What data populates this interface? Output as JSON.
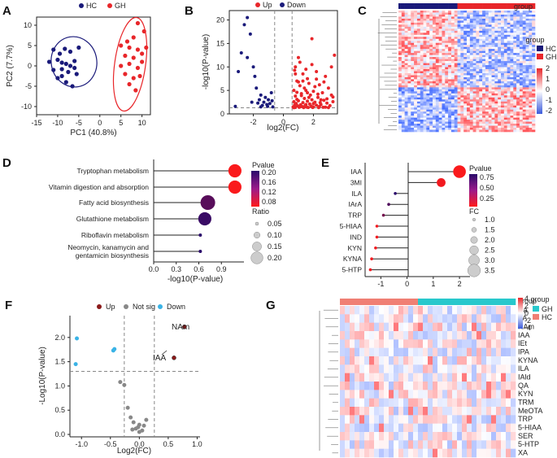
{
  "panels": {
    "A": "A",
    "B": "B",
    "C": "C",
    "D": "D",
    "E": "E",
    "F": "F",
    "G": "G"
  },
  "colors": {
    "hc": "#1a1a7a",
    "gh": "#e8262a",
    "up": "#e8262a",
    "down": "#1a1a7a",
    "f_up": "#8b1a1a",
    "f_notsig": "#888888",
    "f_down": "#3ab3e6"
  },
  "chart_data": [
    {
      "id": "A",
      "type": "scatter",
      "xlabel": "PC1 (40.8%)",
      "ylabel": "PC2 (7.7%)",
      "xlim": [
        -15,
        12
      ],
      "ylim": [
        -12,
        12
      ],
      "xticks": [
        -15,
        -10,
        -5,
        0,
        5,
        10
      ],
      "yticks": [
        -10,
        -5,
        0,
        5,
        10
      ],
      "legend": [
        "HC",
        "GH"
      ],
      "series": [
        {
          "name": "HC",
          "points": [
            [
              -11,
              4
            ],
            [
              -9.5,
              3
            ],
            [
              -8.3,
              4.2
            ],
            [
              -7,
              3.5
            ],
            [
              -5,
              4.5
            ],
            [
              -12,
              1
            ],
            [
              -10,
              1.5
            ],
            [
              -9,
              0.8
            ],
            [
              -8,
              0.5
            ],
            [
              -6,
              1.2
            ],
            [
              -11,
              -1
            ],
            [
              -9,
              -0.8
            ],
            [
              -7.5,
              -1.5
            ],
            [
              -6,
              -0.5
            ],
            [
              -5.5,
              -2
            ],
            [
              -10,
              -3
            ],
            [
              -8,
              -4
            ],
            [
              -6.5,
              -5
            ],
            [
              -9,
              -2.5
            ],
            [
              -7,
              0
            ]
          ]
        },
        {
          "name": "GH",
          "points": [
            [
              9,
              10.5
            ],
            [
              10.5,
              8.5
            ],
            [
              8,
              7
            ],
            [
              6.5,
              6
            ],
            [
              5,
              5
            ],
            [
              7,
              4.5
            ],
            [
              9,
              4
            ],
            [
              11,
              4.5
            ],
            [
              6,
              2.5
            ],
            [
              8,
              2
            ],
            [
              10,
              1
            ],
            [
              5,
              0
            ],
            [
              7,
              0.5
            ],
            [
              9,
              -0.5
            ],
            [
              6,
              -2
            ],
            [
              8,
              -3
            ],
            [
              7,
              -4.5
            ],
            [
              9.5,
              -2.5
            ],
            [
              8.5,
              -6
            ],
            [
              10,
              3
            ]
          ]
        }
      ]
    },
    {
      "id": "B",
      "type": "scatter",
      "xlabel": "log2(FC)",
      "ylabel": "-log10(P-value)",
      "xlim": [
        -3.6,
        3.6
      ],
      "ylim": [
        0,
        22
      ],
      "xticks": [
        -2,
        0,
        2
      ],
      "yticks": [
        0,
        5,
        10,
        15,
        20
      ],
      "legend": [
        "Up",
        "Down"
      ],
      "thresholds": {
        "x": [
          -0.58,
          0.58
        ],
        "y": 1.3
      },
      "series": [
        {
          "name": "Down",
          "points": [
            [
              -2.4,
              20.5
            ],
            [
              -2.6,
              19
            ],
            [
              -2.2,
              17
            ],
            [
              -2.8,
              13
            ],
            [
              -2.4,
              12
            ],
            [
              -3.0,
              9
            ],
            [
              -2.0,
              10
            ],
            [
              -1.9,
              8
            ],
            [
              -1.8,
              5.5
            ],
            [
              -1.5,
              4
            ],
            [
              -1.6,
              3
            ],
            [
              -1.3,
              2.5
            ],
            [
              -1.1,
              2
            ],
            [
              -1.0,
              3
            ],
            [
              -0.8,
              4.5
            ],
            [
              -0.9,
              2.2
            ],
            [
              -1.4,
              1.8
            ],
            [
              -0.7,
              1.5
            ],
            [
              -3.2,
              1.6
            ],
            [
              -1.7,
              2.3
            ],
            [
              -1.2,
              3.5
            ],
            [
              -1.05,
              1.6
            ],
            [
              -0.75,
              2.8
            ],
            [
              -2.1,
              2.5
            ],
            [
              -1.5,
              1.5
            ]
          ]
        },
        {
          "name": "Up",
          "points": [
            [
              3.4,
              12.5
            ],
            [
              3.2,
              10
            ],
            [
              1.9,
              16
            ],
            [
              1.0,
              12
            ],
            [
              0.8,
              10
            ],
            [
              2.2,
              9
            ],
            [
              1.3,
              8.5
            ],
            [
              2.8,
              8
            ],
            [
              1.6,
              7.5
            ],
            [
              0.9,
              7
            ],
            [
              1.7,
              6.5
            ],
            [
              2.4,
              6.2
            ],
            [
              1.1,
              6
            ],
            [
              3.0,
              5.5
            ],
            [
              0.7,
              5
            ],
            [
              1.5,
              5
            ],
            [
              2.0,
              4.8
            ],
            [
              2.6,
              4.5
            ],
            [
              1.2,
              4.3
            ],
            [
              1.8,
              4
            ],
            [
              0.8,
              3.8
            ],
            [
              3.3,
              3.6
            ],
            [
              2.3,
              3.5
            ],
            [
              1.4,
              3.3
            ],
            [
              0.9,
              3.1
            ],
            [
              1.9,
              3
            ],
            [
              2.7,
              2.9
            ],
            [
              1.0,
              2.8
            ],
            [
              1.6,
              2.7
            ],
            [
              0.7,
              2.6
            ],
            [
              2.1,
              2.5
            ],
            [
              1.3,
              2.4
            ],
            [
              2.9,
              2.3
            ],
            [
              0.85,
              2.2
            ],
            [
              1.75,
              2.1
            ],
            [
              2.5,
              2.0
            ],
            [
              1.15,
              1.95
            ],
            [
              0.75,
              1.9
            ],
            [
              2.2,
              1.85
            ],
            [
              1.45,
              1.8
            ],
            [
              3.1,
              1.75
            ],
            [
              0.95,
              1.7
            ],
            [
              1.85,
              1.65
            ],
            [
              2.4,
              1.6
            ],
            [
              1.25,
              1.55
            ],
            [
              0.65,
              1.5
            ],
            [
              2.0,
              1.48
            ],
            [
              1.55,
              1.45
            ],
            [
              2.8,
              1.42
            ],
            [
              1.05,
              1.4
            ],
            [
              0.8,
              1.38
            ],
            [
              1.95,
              1.36
            ],
            [
              2.35,
              1.35
            ],
            [
              1.35,
              1.34
            ],
            [
              0.7,
              1.33
            ],
            [
              3.0,
              1.34
            ],
            [
              1.65,
              1.36
            ],
            [
              2.65,
              1.4
            ],
            [
              1.1,
              1.5
            ],
            [
              1.5,
              2.0
            ],
            [
              2.0,
              2.2
            ],
            [
              2.5,
              3.0
            ],
            [
              1.7,
              3.5
            ],
            [
              1.2,
              3.9
            ],
            [
              2.3,
              4.2
            ],
            [
              3.2,
              4.0
            ],
            [
              0.9,
              4.6
            ],
            [
              1.4,
              5.5
            ],
            [
              2.1,
              5.8
            ],
            [
              1.0,
              6.8
            ],
            [
              2.2,
              7.4
            ],
            [
              1.5,
              9.5
            ],
            [
              0.8,
              8.5
            ],
            [
              2.7,
              6.8
            ],
            [
              1.9,
              10.5
            ],
            [
              1.1,
              11
            ],
            [
              0.75,
              9.3
            ],
            [
              3.3,
              2.6
            ],
            [
              2.9,
              3.2
            ],
            [
              1.6,
              4.5
            ],
            [
              1.3,
              7
            ],
            [
              2.45,
              2.4
            ]
          ]
        }
      ]
    },
    {
      "id": "C",
      "type": "heatmap",
      "legend_title": "group",
      "legend": [
        "HC",
        "GH"
      ],
      "colorbar_ticks": [
        "2",
        "1",
        "0",
        "-1",
        "-2"
      ],
      "cols": 44,
      "rows": 60
    },
    {
      "id": "D",
      "type": "lollipop",
      "xlabel": "-log10(P-value)",
      "xticks": [
        "0.0",
        "0.3",
        "0.6",
        "0.9"
      ],
      "xlim": [
        0,
        1.2
      ],
      "categories": [
        "Tryptophan metabolism",
        "Vitamin digestion and absorption",
        "Fatty acid biosynthesis",
        "Glutathione metabolism",
        "Riboflavin metabolism",
        "Neomycin, kanamycin and gentamicin biosynthesis"
      ],
      "values": [
        1.08,
        1.08,
        0.72,
        0.68,
        0.62,
        0.62
      ],
      "pvalue": [
        0.083,
        0.083,
        0.19,
        0.21,
        0.24,
        0.24
      ],
      "ratio": [
        0.18,
        0.18,
        0.2,
        0.18,
        0.05,
        0.05
      ],
      "size_legend": {
        "title": "Ratio",
        "labels": [
          "0.05",
          "0.10",
          "0.15",
          "0.20"
        ]
      },
      "color_legend": {
        "title": "Pvalue",
        "labels": [
          "0.20",
          "0.16",
          "0.12",
          "0.08"
        ]
      }
    },
    {
      "id": "E",
      "type": "lollipop",
      "xlim": [
        -1.6,
        2.4
      ],
      "xticks": [
        "-1",
        "0",
        "1",
        "2"
      ],
      "categories": [
        "IAA",
        "3MI",
        "ILA",
        "IArA",
        "TRP",
        "5-HIAA",
        "IND",
        "KYN",
        "KYNA",
        "5-HTP"
      ],
      "values": [
        2.0,
        1.3,
        -0.45,
        -0.7,
        -0.9,
        -1.15,
        -1.15,
        -1.2,
        -1.35,
        -1.4
      ],
      "pvalue": [
        0.02,
        0.05,
        0.85,
        0.7,
        0.55,
        0.05,
        0.05,
        0.05,
        0.05,
        0.05
      ],
      "fc": [
        3.5,
        2.5,
        1.0,
        1.0,
        1.0,
        1.0,
        1.0,
        1.0,
        1.0,
        1.0
      ],
      "size_legend": {
        "title": "FC",
        "labels": [
          "1.0",
          "1.5",
          "2.0",
          "2.5",
          "3.0",
          "3.5"
        ]
      },
      "color_legend": {
        "title": "Pvalue",
        "labels": [
          "0.75",
          "0.50",
          "0.25"
        ]
      }
    },
    {
      "id": "F",
      "type": "scatter",
      "xlabel": "Log2(FC)",
      "ylabel": "-Log10(P-value)",
      "xlim": [
        -1.2,
        1.05
      ],
      "ylim": [
        -0.05,
        2.45
      ],
      "xticks": [
        "-1.0",
        "-0.5",
        "0.0",
        "0.5",
        "1.0"
      ],
      "yticks": [
        "0.0",
        "0.5",
        "1.0",
        "1.5",
        "2.0"
      ],
      "legend": [
        "Up",
        "Not sig",
        "Down"
      ],
      "thresholds": {
        "x": [
          -0.26,
          0.26
        ],
        "y": 1.3
      },
      "annotations": {
        "NAm": "NAm",
        "IAA": "IAA"
      },
      "series": [
        {
          "name": "Up",
          "points": [
            [
              0.78,
              2.22
            ],
            [
              0.6,
              1.58
            ]
          ]
        },
        {
          "name": "Not sig",
          "points": [
            [
              -0.33,
              1.08
            ],
            [
              -0.26,
              1.02
            ],
            [
              -0.2,
              0.55
            ],
            [
              -0.15,
              0.35
            ],
            [
              -0.1,
              0.25
            ],
            [
              -0.06,
              0.12
            ],
            [
              0.0,
              0.2
            ],
            [
              0.05,
              0.08
            ],
            [
              0.0,
              0.05
            ],
            [
              0.12,
              0.3
            ],
            [
              -0.02,
              0.15
            ],
            [
              0.08,
              0.18
            ],
            [
              -0.12,
              0.1
            ]
          ]
        },
        {
          "name": "Down",
          "points": [
            [
              -1.08,
              1.98
            ],
            [
              -1.1,
              1.45
            ],
            [
              -0.45,
              1.73
            ],
            [
              -0.43,
              1.76
            ]
          ]
        }
      ]
    },
    {
      "id": "G",
      "type": "heatmap",
      "legend_title": "group",
      "legend": [
        "GH",
        "HC"
      ],
      "header_label": "group",
      "colorbar_ticks": [
        "4",
        "2",
        "0",
        "-2",
        "-4"
      ],
      "rows": [
        "Na",
        "PA",
        "NAm",
        "IAA",
        "IEt",
        "IPA",
        "KYNA",
        "ILA",
        "IAld",
        "QA",
        "KYN",
        "TRM",
        "MeOTA",
        "TRP",
        "5-HIAA",
        "SER",
        "5-HTP",
        "XA"
      ],
      "cols": 36
    }
  ]
}
